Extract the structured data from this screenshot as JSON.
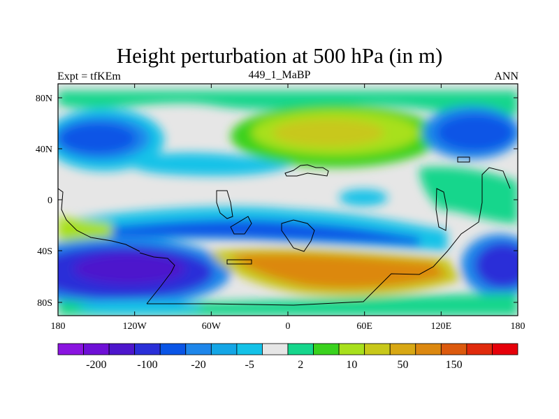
{
  "title": "Height perturbation at 500 hPa (in m)",
  "subtitle_left": "Expt = tfKEm",
  "subtitle_center": "449_1_MaBP",
  "subtitle_right": "ANN",
  "x_ticks": [
    "180",
    "120W",
    "60W",
    "0",
    "60E",
    "120E",
    "180"
  ],
  "y_ticks": [
    "80N",
    "40N",
    "0",
    "40S",
    "80S"
  ],
  "colorbar": {
    "colors": [
      "#8a14e0",
      "#6e10d6",
      "#4d16cc",
      "#2a2fd8",
      "#0a55e6",
      "#1e86ea",
      "#14a6e6",
      "#14c2e8",
      "#e6e6e6",
      "#16d68c",
      "#3ad21e",
      "#a8e01c",
      "#c8c81a",
      "#d8a814",
      "#dc8810",
      "#dc5a0e",
      "#e02a0c",
      "#e6000a"
    ],
    "labels": [
      "-200",
      "-100",
      "-20",
      "-5",
      "2",
      "10",
      "50",
      "150"
    ]
  }
}
